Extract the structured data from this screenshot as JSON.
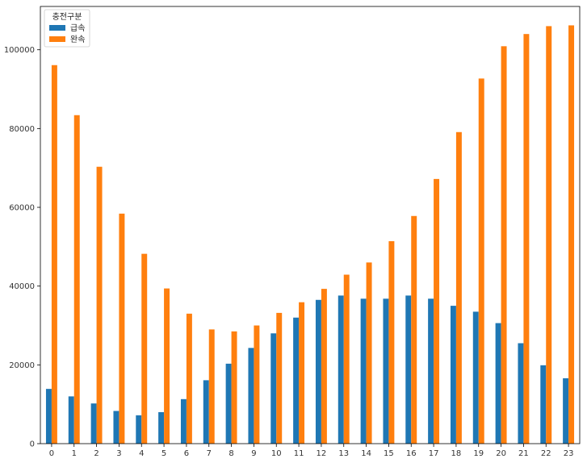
{
  "chart_data": {
    "type": "bar",
    "categories": [
      "0",
      "1",
      "2",
      "3",
      "4",
      "5",
      "6",
      "7",
      "8",
      "9",
      "10",
      "11",
      "12",
      "13",
      "14",
      "15",
      "16",
      "17",
      "18",
      "19",
      "20",
      "21",
      "22",
      "23"
    ],
    "series": [
      {
        "name": "급속",
        "color": "#1f77b4",
        "values": [
          13900,
          12000,
          10200,
          8300,
          7200,
          8000,
          11300,
          16100,
          20300,
          24300,
          28000,
          32000,
          36500,
          37600,
          36800,
          36800,
          37600,
          36800,
          35000,
          33500,
          30600,
          25500,
          19900,
          16600
        ]
      },
      {
        "name": "완속",
        "color": "#ff7f0e",
        "values": [
          96100,
          83400,
          70300,
          58400,
          48200,
          39400,
          33000,
          29000,
          28500,
          30000,
          33200,
          35900,
          39300,
          42900,
          46000,
          51400,
          57800,
          67200,
          79100,
          92700,
          100900,
          104000,
          106000,
          106200
        ]
      }
    ],
    "legend": {
      "title": "충전구분",
      "position": "top-left"
    },
    "title": "",
    "xlabel": "",
    "ylabel": "",
    "ylim": [
      0,
      111000
    ],
    "yticks": [
      0,
      20000,
      40000,
      60000,
      80000,
      100000
    ],
    "grid": false
  }
}
